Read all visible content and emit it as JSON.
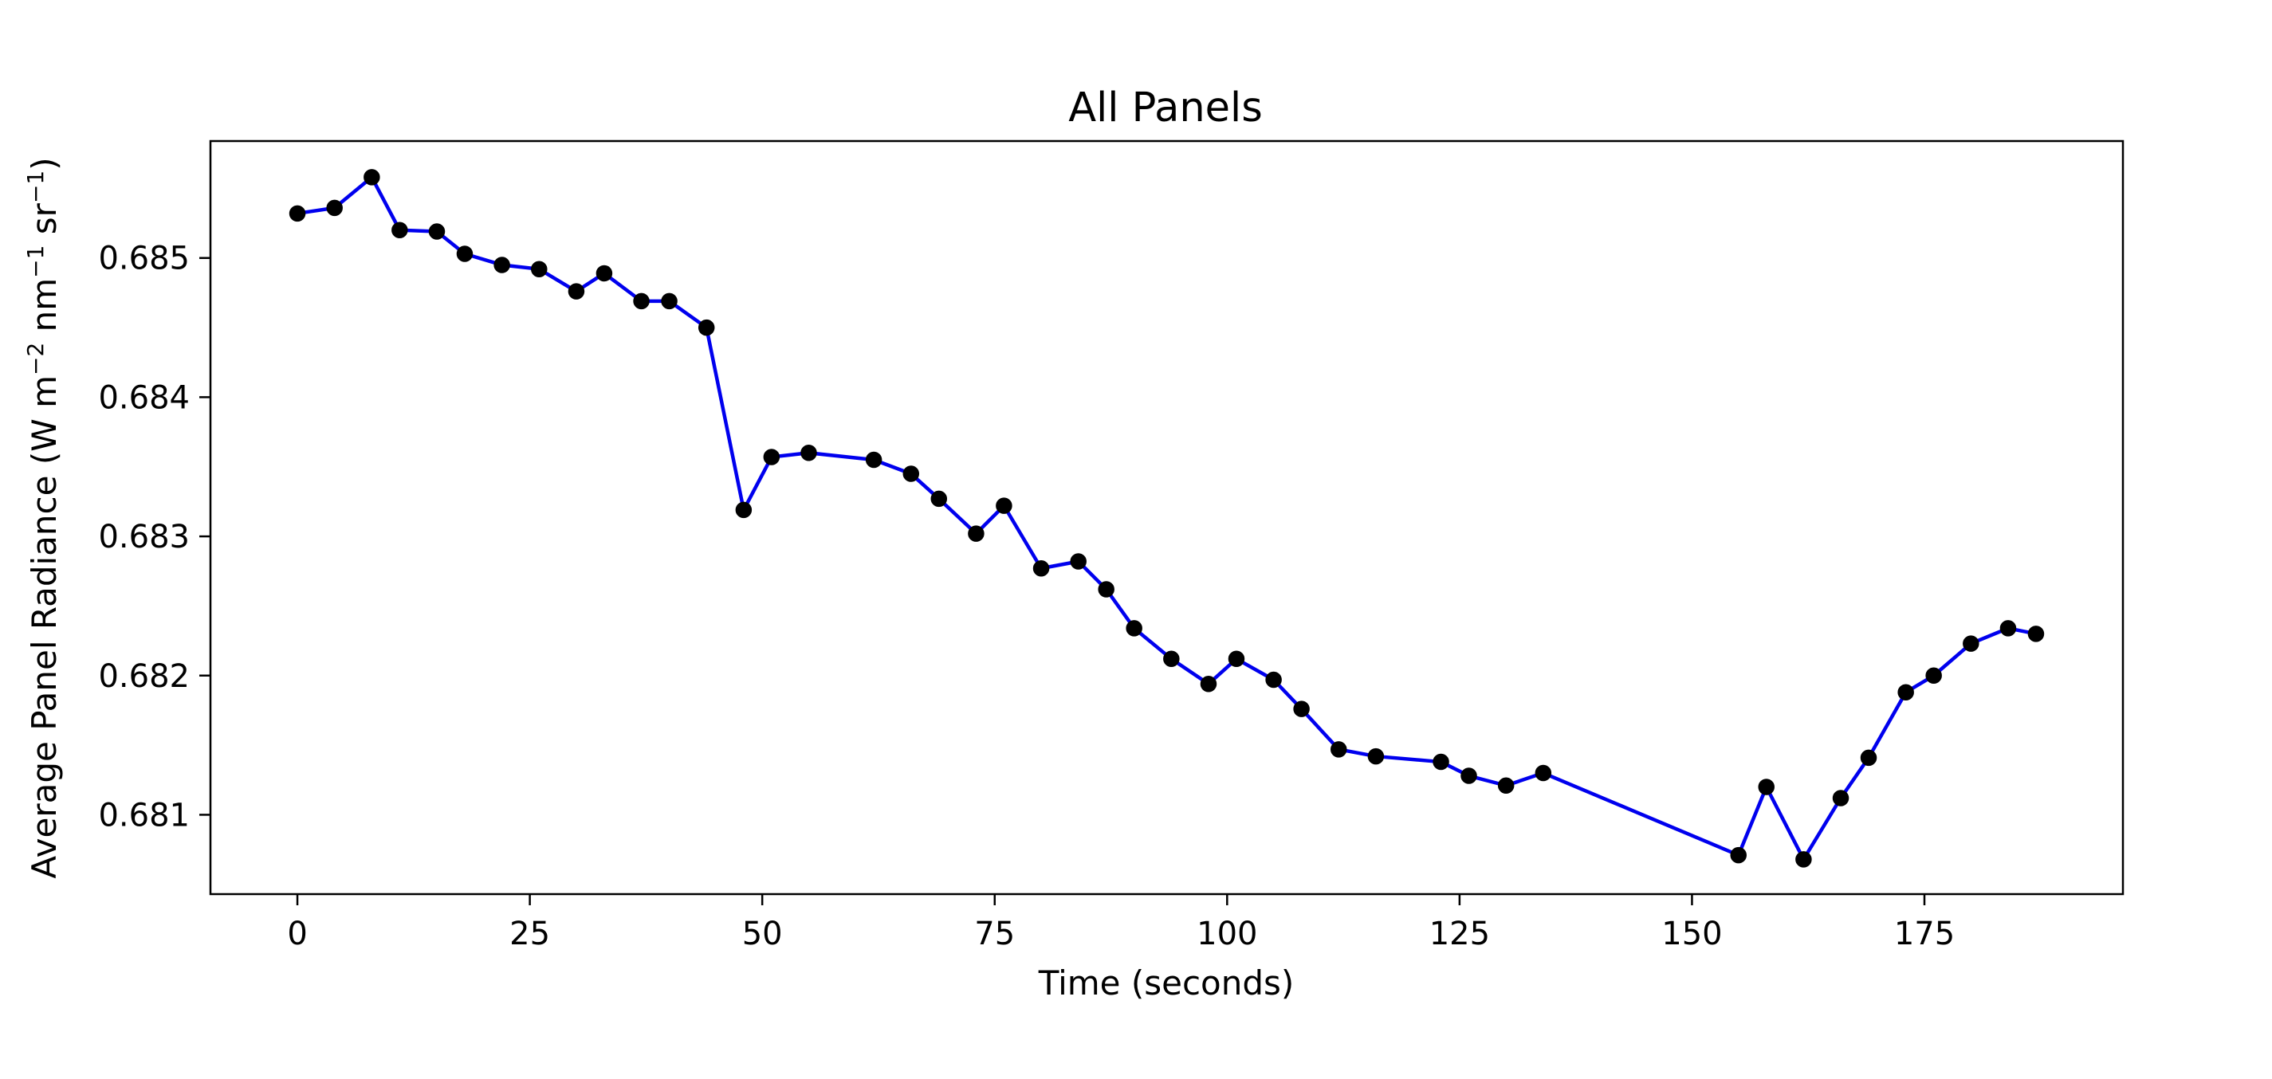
{
  "chart_data": {
    "type": "line",
    "title": "All Panels",
    "xlabel": "Time (seconds)",
    "ylabel": {
      "parts": [
        "Average Panel Radiance (W m",
        "−2",
        " nm",
        "−1",
        " sr",
        "−1",
        ")"
      ]
    },
    "xlim": [
      -9.35,
      196.35
    ],
    "ylim": [
      0.68043,
      0.68584
    ],
    "x_ticks": [
      0,
      25,
      50,
      75,
      100,
      125,
      150,
      175
    ],
    "x_tick_labels": [
      "0",
      "25",
      "50",
      "75",
      "100",
      "125",
      "150",
      "175"
    ],
    "y_ticks": [
      0.681,
      0.682,
      0.683,
      0.684,
      0.685
    ],
    "y_tick_labels": [
      "0.681",
      "0.682",
      "0.683",
      "0.684",
      "0.685"
    ],
    "grid": false,
    "series": [
      {
        "line_color": "#0000ee",
        "marker_color": "#000000",
        "points": [
          [
            0,
            0.68532
          ],
          [
            4,
            0.68536
          ],
          [
            8,
            0.68558
          ],
          [
            11,
            0.6852
          ],
          [
            15,
            0.68519
          ],
          [
            18,
            0.68503
          ],
          [
            22,
            0.68495
          ],
          [
            26,
            0.68492
          ],
          [
            30,
            0.68476
          ],
          [
            33,
            0.68489
          ],
          [
            37,
            0.68469
          ],
          [
            40,
            0.68469
          ],
          [
            44,
            0.6845
          ],
          [
            48,
            0.68319
          ],
          [
            51,
            0.68357
          ],
          [
            55,
            0.6836
          ],
          [
            62,
            0.68355
          ],
          [
            66,
            0.68345
          ],
          [
            69,
            0.68327
          ],
          [
            73,
            0.68302
          ],
          [
            76,
            0.68322
          ],
          [
            80,
            0.68277
          ],
          [
            84,
            0.68282
          ],
          [
            87,
            0.68262
          ],
          [
            90,
            0.68234
          ],
          [
            94,
            0.68212
          ],
          [
            98,
            0.68194
          ],
          [
            101,
            0.68212
          ],
          [
            105,
            0.68197
          ],
          [
            108,
            0.68176
          ],
          [
            112,
            0.68147
          ],
          [
            116,
            0.68142
          ],
          [
            123,
            0.68138
          ],
          [
            126,
            0.68128
          ],
          [
            130,
            0.68121
          ],
          [
            134,
            0.6813
          ],
          [
            155,
            0.68071
          ],
          [
            158,
            0.6812
          ],
          [
            162,
            0.68068
          ],
          [
            166,
            0.68112
          ],
          [
            169,
            0.68141
          ],
          [
            173,
            0.68188
          ],
          [
            176,
            0.682
          ],
          [
            180,
            0.68223
          ],
          [
            184,
            0.68234
          ],
          [
            187,
            0.6823
          ]
        ]
      }
    ]
  }
}
